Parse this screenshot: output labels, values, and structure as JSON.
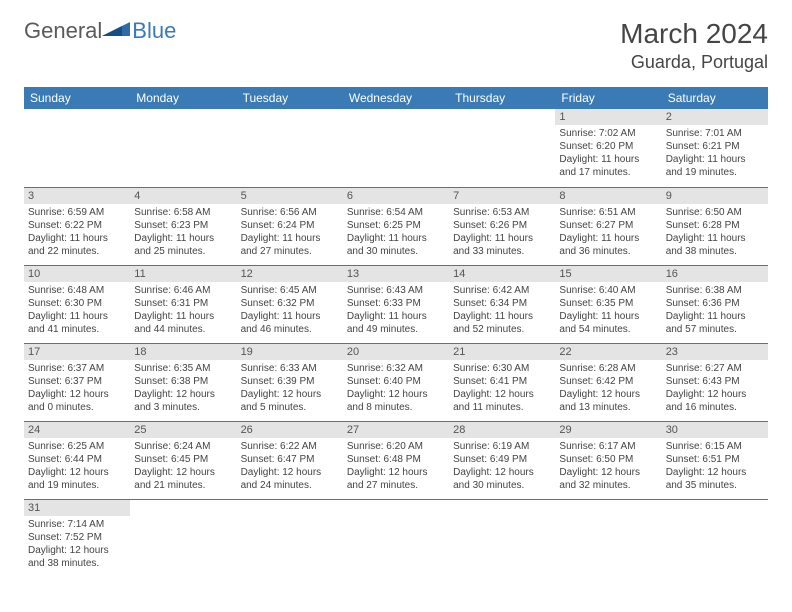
{
  "brand": {
    "general": "General",
    "blue": "Blue"
  },
  "title": {
    "month": "March 2024",
    "location": "Guarda, Portugal"
  },
  "colors": {
    "header_bg": "#3a7ab5",
    "daynum_bg": "#e4e4e4",
    "row_border": "#3a7ab5"
  },
  "weekdays": [
    "Sunday",
    "Monday",
    "Tuesday",
    "Wednesday",
    "Thursday",
    "Friday",
    "Saturday"
  ],
  "weeks": [
    [
      null,
      null,
      null,
      null,
      null,
      {
        "d": "1",
        "sr": "Sunrise: 7:02 AM",
        "ss": "Sunset: 6:20 PM",
        "dl": "Daylight: 11 hours and 17 minutes."
      },
      {
        "d": "2",
        "sr": "Sunrise: 7:01 AM",
        "ss": "Sunset: 6:21 PM",
        "dl": "Daylight: 11 hours and 19 minutes."
      }
    ],
    [
      {
        "d": "3",
        "sr": "Sunrise: 6:59 AM",
        "ss": "Sunset: 6:22 PM",
        "dl": "Daylight: 11 hours and 22 minutes."
      },
      {
        "d": "4",
        "sr": "Sunrise: 6:58 AM",
        "ss": "Sunset: 6:23 PM",
        "dl": "Daylight: 11 hours and 25 minutes."
      },
      {
        "d": "5",
        "sr": "Sunrise: 6:56 AM",
        "ss": "Sunset: 6:24 PM",
        "dl": "Daylight: 11 hours and 27 minutes."
      },
      {
        "d": "6",
        "sr": "Sunrise: 6:54 AM",
        "ss": "Sunset: 6:25 PM",
        "dl": "Daylight: 11 hours and 30 minutes."
      },
      {
        "d": "7",
        "sr": "Sunrise: 6:53 AM",
        "ss": "Sunset: 6:26 PM",
        "dl": "Daylight: 11 hours and 33 minutes."
      },
      {
        "d": "8",
        "sr": "Sunrise: 6:51 AM",
        "ss": "Sunset: 6:27 PM",
        "dl": "Daylight: 11 hours and 36 minutes."
      },
      {
        "d": "9",
        "sr": "Sunrise: 6:50 AM",
        "ss": "Sunset: 6:28 PM",
        "dl": "Daylight: 11 hours and 38 minutes."
      }
    ],
    [
      {
        "d": "10",
        "sr": "Sunrise: 6:48 AM",
        "ss": "Sunset: 6:30 PM",
        "dl": "Daylight: 11 hours and 41 minutes."
      },
      {
        "d": "11",
        "sr": "Sunrise: 6:46 AM",
        "ss": "Sunset: 6:31 PM",
        "dl": "Daylight: 11 hours and 44 minutes."
      },
      {
        "d": "12",
        "sr": "Sunrise: 6:45 AM",
        "ss": "Sunset: 6:32 PM",
        "dl": "Daylight: 11 hours and 46 minutes."
      },
      {
        "d": "13",
        "sr": "Sunrise: 6:43 AM",
        "ss": "Sunset: 6:33 PM",
        "dl": "Daylight: 11 hours and 49 minutes."
      },
      {
        "d": "14",
        "sr": "Sunrise: 6:42 AM",
        "ss": "Sunset: 6:34 PM",
        "dl": "Daylight: 11 hours and 52 minutes."
      },
      {
        "d": "15",
        "sr": "Sunrise: 6:40 AM",
        "ss": "Sunset: 6:35 PM",
        "dl": "Daylight: 11 hours and 54 minutes."
      },
      {
        "d": "16",
        "sr": "Sunrise: 6:38 AM",
        "ss": "Sunset: 6:36 PM",
        "dl": "Daylight: 11 hours and 57 minutes."
      }
    ],
    [
      {
        "d": "17",
        "sr": "Sunrise: 6:37 AM",
        "ss": "Sunset: 6:37 PM",
        "dl": "Daylight: 12 hours and 0 minutes."
      },
      {
        "d": "18",
        "sr": "Sunrise: 6:35 AM",
        "ss": "Sunset: 6:38 PM",
        "dl": "Daylight: 12 hours and 3 minutes."
      },
      {
        "d": "19",
        "sr": "Sunrise: 6:33 AM",
        "ss": "Sunset: 6:39 PM",
        "dl": "Daylight: 12 hours and 5 minutes."
      },
      {
        "d": "20",
        "sr": "Sunrise: 6:32 AM",
        "ss": "Sunset: 6:40 PM",
        "dl": "Daylight: 12 hours and 8 minutes."
      },
      {
        "d": "21",
        "sr": "Sunrise: 6:30 AM",
        "ss": "Sunset: 6:41 PM",
        "dl": "Daylight: 12 hours and 11 minutes."
      },
      {
        "d": "22",
        "sr": "Sunrise: 6:28 AM",
        "ss": "Sunset: 6:42 PM",
        "dl": "Daylight: 12 hours and 13 minutes."
      },
      {
        "d": "23",
        "sr": "Sunrise: 6:27 AM",
        "ss": "Sunset: 6:43 PM",
        "dl": "Daylight: 12 hours and 16 minutes."
      }
    ],
    [
      {
        "d": "24",
        "sr": "Sunrise: 6:25 AM",
        "ss": "Sunset: 6:44 PM",
        "dl": "Daylight: 12 hours and 19 minutes."
      },
      {
        "d": "25",
        "sr": "Sunrise: 6:24 AM",
        "ss": "Sunset: 6:45 PM",
        "dl": "Daylight: 12 hours and 21 minutes."
      },
      {
        "d": "26",
        "sr": "Sunrise: 6:22 AM",
        "ss": "Sunset: 6:47 PM",
        "dl": "Daylight: 12 hours and 24 minutes."
      },
      {
        "d": "27",
        "sr": "Sunrise: 6:20 AM",
        "ss": "Sunset: 6:48 PM",
        "dl": "Daylight: 12 hours and 27 minutes."
      },
      {
        "d": "28",
        "sr": "Sunrise: 6:19 AM",
        "ss": "Sunset: 6:49 PM",
        "dl": "Daylight: 12 hours and 30 minutes."
      },
      {
        "d": "29",
        "sr": "Sunrise: 6:17 AM",
        "ss": "Sunset: 6:50 PM",
        "dl": "Daylight: 12 hours and 32 minutes."
      },
      {
        "d": "30",
        "sr": "Sunrise: 6:15 AM",
        "ss": "Sunset: 6:51 PM",
        "dl": "Daylight: 12 hours and 35 minutes."
      }
    ],
    [
      {
        "d": "31",
        "sr": "Sunrise: 7:14 AM",
        "ss": "Sunset: 7:52 PM",
        "dl": "Daylight: 12 hours and 38 minutes."
      },
      null,
      null,
      null,
      null,
      null,
      null
    ]
  ]
}
